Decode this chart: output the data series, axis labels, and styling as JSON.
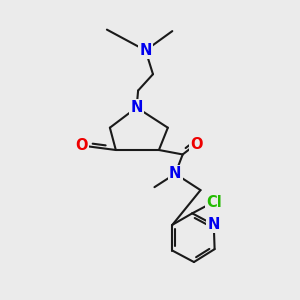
{
  "background_color": "#ebebeb",
  "bond_color": "#1a1a1a",
  "bond_width": 1.5,
  "atom_colors": {
    "N": "#0000ee",
    "O": "#ee0000",
    "Cl": "#22bb00",
    "C": "#1a1a1a"
  },
  "font_size": 10.5
}
